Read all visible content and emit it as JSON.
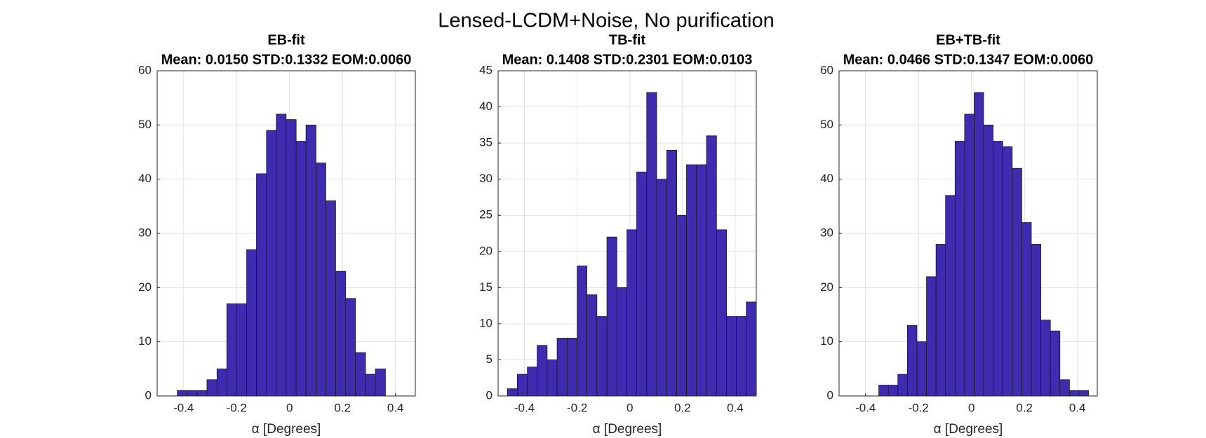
{
  "title": "Lensed-LCDM+Noise, No purification",
  "chart_data": [
    {
      "type": "histogram",
      "title": "EB-fit",
      "subtitle": "Mean: 0.0150 STD:0.1332 EOM:0.0060",
      "xlabel": "α [Degrees]",
      "bins": [
        -0.424,
        -0.387,
        -0.349,
        -0.312,
        -0.274,
        -0.237,
        -0.2,
        -0.162,
        -0.125,
        -0.087,
        -0.05,
        -0.013,
        0.025,
        0.062,
        0.1,
        0.137,
        0.174,
        0.212,
        0.249,
        0.287,
        0.324,
        0.362
      ],
      "values": [
        1,
        1,
        1,
        3,
        5,
        17,
        17,
        27,
        41,
        49,
        52,
        51,
        47,
        50,
        43,
        36,
        23,
        18,
        8,
        4,
        5
      ],
      "color": "#3f2bb0",
      "xlim": [
        -0.5,
        0.475
      ],
      "ylim": [
        0,
        60
      ],
      "xticks": [
        -0.4,
        -0.2,
        0,
        0.2,
        0.4
      ],
      "yticks": [
        0,
        10,
        20,
        30,
        40,
        50,
        60
      ],
      "grid": true
    },
    {
      "type": "histogram",
      "title": "TB-fit",
      "subtitle": "Mean: 0.1408 STD:0.2301 EOM:0.0103",
      "xlabel": "α [Degrees]",
      "bins": [
        -0.465,
        -0.427,
        -0.389,
        -0.352,
        -0.314,
        -0.276,
        -0.238,
        -0.2,
        -0.163,
        -0.125,
        -0.087,
        -0.049,
        -0.011,
        0.026,
        0.064,
        0.102,
        0.14,
        0.178,
        0.215,
        0.253,
        0.291,
        0.329,
        0.367,
        0.404,
        0.442,
        0.48
      ],
      "values": [
        1,
        3,
        4,
        7,
        5,
        8,
        8,
        18,
        14,
        11,
        22,
        15,
        23,
        31,
        42,
        30,
        34,
        25,
        32,
        32,
        36,
        23,
        11,
        11,
        13
      ],
      "color": "#3f2bb0",
      "xlim": [
        -0.5,
        0.48
      ],
      "ylim": [
        0,
        45
      ],
      "xticks": [
        -0.4,
        -0.2,
        0,
        0.2,
        0.4
      ],
      "yticks": [
        0,
        5,
        10,
        15,
        20,
        25,
        30,
        35,
        40,
        45
      ],
      "grid": true
    },
    {
      "type": "histogram",
      "title": "EB+TB-fit",
      "subtitle": "Mean: 0.0466 STD:0.1347 EOM:0.0060",
      "xlabel": "α [Degrees]",
      "bins": [
        -0.35,
        -0.314,
        -0.278,
        -0.242,
        -0.206,
        -0.17,
        -0.134,
        -0.098,
        -0.062,
        -0.026,
        0.01,
        0.046,
        0.082,
        0.118,
        0.154,
        0.19,
        0.226,
        0.262,
        0.298,
        0.334,
        0.37,
        0.406,
        0.442
      ],
      "values": [
        2,
        2,
        4,
        13,
        10,
        22,
        28,
        37,
        47,
        52,
        56,
        50,
        47,
        46,
        42,
        32,
        28,
        14,
        12,
        3,
        1,
        1
      ],
      "color": "#3f2bb0",
      "xlim": [
        -0.5,
        0.475
      ],
      "ylim": [
        0,
        60
      ],
      "xticks": [
        -0.4,
        -0.2,
        0,
        0.2,
        0.4
      ],
      "yticks": [
        0,
        10,
        20,
        30,
        40,
        50,
        60
      ],
      "grid": true
    }
  ]
}
